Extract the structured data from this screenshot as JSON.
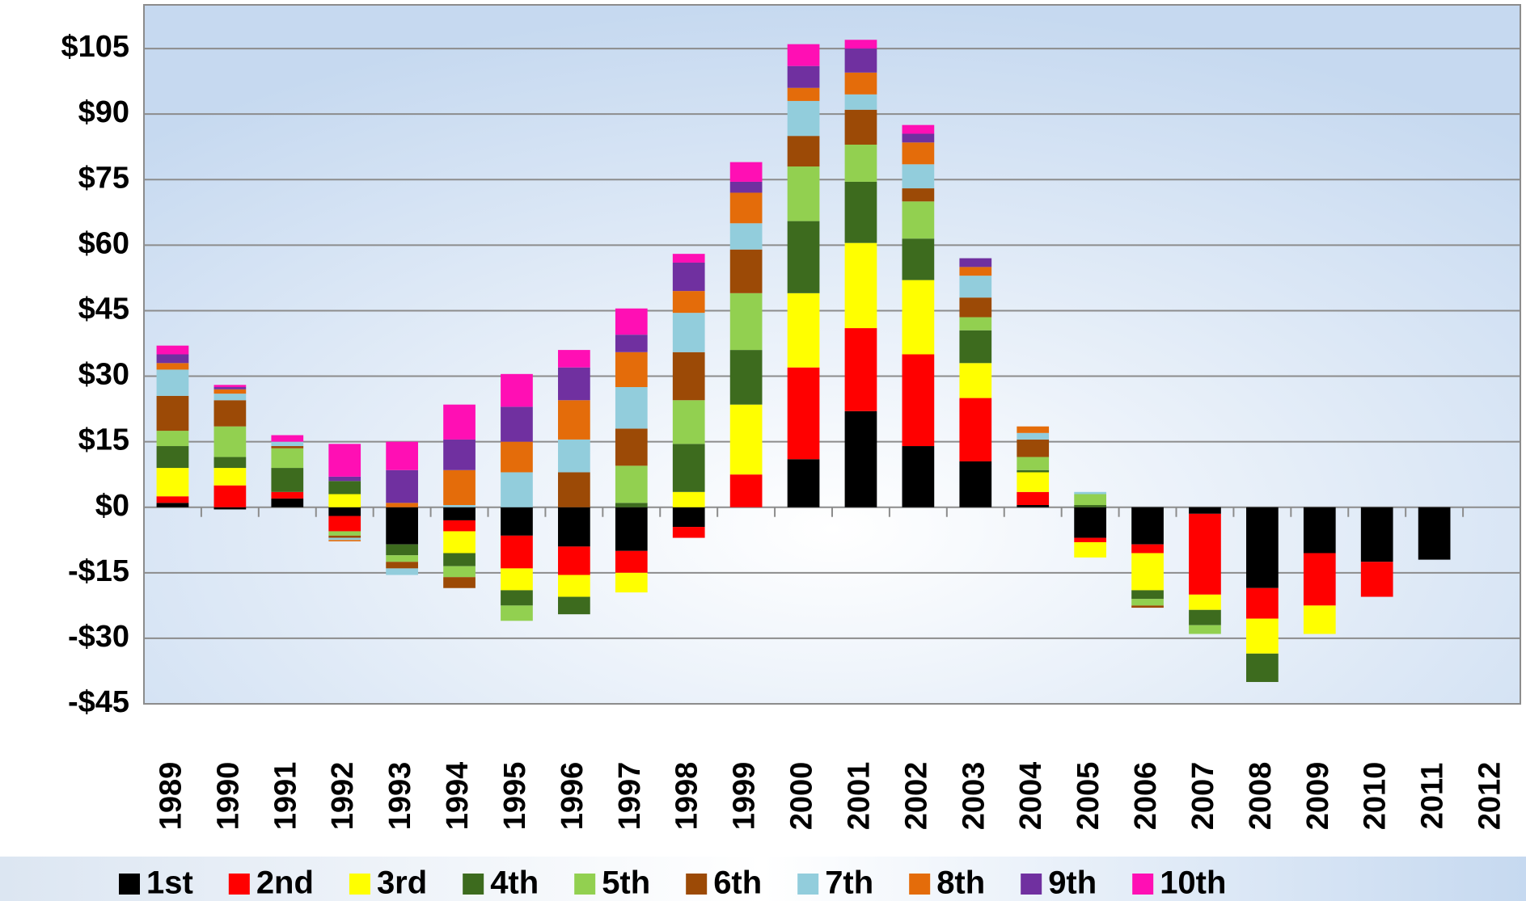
{
  "chart_data": {
    "type": "bar",
    "stacked": true,
    "categories": [
      "1989",
      "1990",
      "1991",
      "1992",
      "1993",
      "1994",
      "1995",
      "1996",
      "1997",
      "1998",
      "1999",
      "2000",
      "2001",
      "2002",
      "2003",
      "2004",
      "2005",
      "2006",
      "2007",
      "2008",
      "2009",
      "2010",
      "2011",
      "2012"
    ],
    "series": [
      {
        "name": "1st",
        "color": "#000000",
        "values": [
          1,
          -0.5,
          2,
          -2,
          -8.5,
          -3,
          -6.5,
          -9,
          -10,
          -4.5,
          0,
          11,
          22,
          14,
          10.5,
          0.5,
          -7,
          -8.5,
          -1.5,
          -18.5,
          -10.5,
          -12.5,
          -12,
          0
        ]
      },
      {
        "name": "2nd",
        "color": "#ff0000",
        "values": [
          1.5,
          5,
          1.5,
          -3.5,
          0,
          -2.5,
          -7.5,
          -6.5,
          -5,
          -2.5,
          7.5,
          21,
          19,
          21,
          14.5,
          3,
          -1,
          -2,
          -18.5,
          -7,
          -12,
          -8,
          0,
          0
        ]
      },
      {
        "name": "3rd",
        "color": "#ffff00",
        "values": [
          6.5,
          4,
          0,
          3,
          0,
          -5,
          -5,
          -5,
          -4.5,
          3.5,
          16,
          17,
          19.5,
          17,
          8,
          4.5,
          -3.5,
          -8.5,
          -3.5,
          -8,
          -6.5,
          0,
          0,
          0
        ]
      },
      {
        "name": "4th",
        "color": "#3d6b1e",
        "values": [
          5,
          2.5,
          5.5,
          3,
          -2.5,
          -3,
          -3.5,
          -4,
          1,
          11,
          12.5,
          16.5,
          14,
          9.5,
          7.5,
          0.5,
          0.5,
          -2,
          -3.5,
          -6.5,
          0,
          0,
          0,
          0
        ]
      },
      {
        "name": "5th",
        "color": "#92d050",
        "values": [
          3.5,
          7,
          4.5,
          -1,
          -1.5,
          -2.5,
          -3.5,
          0,
          8.5,
          10,
          13,
          12.5,
          8.5,
          8.5,
          3,
          3,
          2.5,
          -1.5,
          -2,
          0,
          0,
          0,
          0,
          0
        ]
      },
      {
        "name": "6th",
        "color": "#9c4a06",
        "values": [
          8,
          6,
          0.5,
          -0.5,
          -1.5,
          -2.5,
          0,
          8,
          8.5,
          11,
          10,
          7,
          8,
          3,
          4.5,
          4,
          0,
          -0.5,
          0,
          0,
          0,
          0,
          0,
          0
        ]
      },
      {
        "name": "7th",
        "color": "#92cddc",
        "values": [
          6,
          1.5,
          1,
          -0.5,
          -1.5,
          0.5,
          8,
          7.5,
          9.5,
          9,
          6,
          8,
          3.5,
          5.5,
          5,
          1.5,
          0.5,
          0,
          0,
          0,
          0,
          0,
          0,
          0
        ]
      },
      {
        "name": "8th",
        "color": "#e46c0a",
        "values": [
          1.5,
          1,
          0,
          -0.3,
          1,
          8,
          7,
          9,
          8,
          5,
          7,
          3,
          5,
          5,
          2,
          1.5,
          0,
          0,
          0,
          0,
          0,
          0,
          0,
          0
        ]
      },
      {
        "name": "9th",
        "color": "#7030a0",
        "values": [
          2,
          0.5,
          0,
          1,
          7.5,
          7,
          8,
          7.5,
          4,
          6.5,
          2.5,
          5,
          5.5,
          2,
          2,
          0,
          0,
          0,
          0,
          0,
          0,
          0,
          0,
          0
        ]
      },
      {
        "name": "10th",
        "color": "#ff0fb4",
        "values": [
          2,
          0.5,
          1.5,
          7.5,
          6.5,
          8,
          7.5,
          4,
          6,
          2,
          4.5,
          5,
          2,
          2,
          0,
          0,
          0,
          0,
          0,
          0,
          0,
          0,
          0,
          0
        ]
      }
    ],
    "ylim": [
      -45,
      115
    ],
    "yticks": [
      {
        "value": -45,
        "label": "-$45"
      },
      {
        "value": -30,
        "label": "-$30"
      },
      {
        "value": -15,
        "label": "-$15"
      },
      {
        "value": 0,
        "label": "$0"
      },
      {
        "value": 15,
        "label": "$15"
      },
      {
        "value": 30,
        "label": "$30"
      },
      {
        "value": 45,
        "label": "$45"
      },
      {
        "value": 60,
        "label": "$60"
      },
      {
        "value": 75,
        "label": "$75"
      },
      {
        "value": 90,
        "label": "$90"
      },
      {
        "value": 105,
        "label": "$105"
      }
    ],
    "grid": true,
    "legend": "bottom"
  }
}
